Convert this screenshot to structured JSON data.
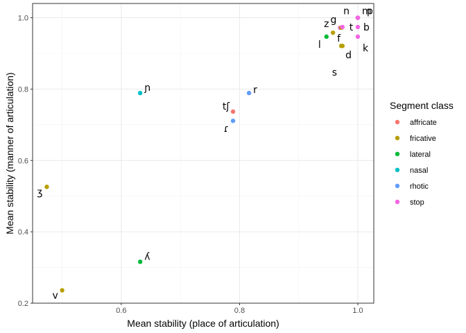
{
  "chart_data": {
    "type": "scatter",
    "xlabel": "Mean stability (place of articulation)",
    "ylabel": "Mean stability (manner of articulation)",
    "xlim": [
      0.45,
      1.027
    ],
    "ylim": [
      0.2,
      1.04
    ],
    "x_ticks": [
      0.6,
      0.8,
      1.0
    ],
    "x_tick_labels": [
      "0.6",
      "0.8",
      "1.0"
    ],
    "y_ticks": [
      0.2,
      0.4,
      0.6,
      0.8,
      1.0
    ],
    "y_tick_labels": [
      "0.2",
      "0.4",
      "0.6",
      "0.8",
      "1.0"
    ],
    "grid": true,
    "legend": {
      "title": "Segment class",
      "placement": "right",
      "entries": [
        {
          "name": "affricate",
          "color": "#F8766D"
        },
        {
          "name": "fricative",
          "color": "#B79F00"
        },
        {
          "name": "lateral",
          "color": "#00BA38"
        },
        {
          "name": "nasal",
          "color": "#00BFC4"
        },
        {
          "name": "rhotic",
          "color": "#619CFF"
        },
        {
          "name": "stop",
          "color": "#F564E3"
        }
      ]
    },
    "points": [
      {
        "label": "ʒ",
        "class": "fricative",
        "x": 0.474,
        "y": 0.526
      },
      {
        "label": "v",
        "class": "fricative",
        "x": 0.5,
        "y": 0.236
      },
      {
        "label": "ɲ",
        "class": "nasal",
        "x": 0.632,
        "y": 0.789
      },
      {
        "label": "ʎ",
        "class": "lateral",
        "x": 0.632,
        "y": 0.316
      },
      {
        "label": "tʃ",
        "class": "affricate",
        "x": 0.789,
        "y": 0.737
      },
      {
        "label": "ɾ",
        "class": "rhotic",
        "x": 0.789,
        "y": 0.711
      },
      {
        "label": "r",
        "class": "rhotic",
        "x": 0.816,
        "y": 0.789
      },
      {
        "label": "l",
        "class": "lateral",
        "x": 0.947,
        "y": 0.947
      },
      {
        "label": "z",
        "class": "fricative",
        "x": 0.958,
        "y": 0.958
      },
      {
        "label": "g",
        "class": "stop",
        "x": 0.97,
        "y": 0.972
      },
      {
        "label": "f",
        "class": "fricative",
        "x": 0.972,
        "y": 0.972
      },
      {
        "label": "s",
        "class": "fricative",
        "x": 0.974,
        "y": 0.921
      },
      {
        "label": "t",
        "class": "stop",
        "x": 0.974,
        "y": 0.974
      },
      {
        "label": "d",
        "class": "fricative",
        "x": 0.972,
        "y": 0.921
      },
      {
        "label": "n",
        "class": "stop",
        "x": 1.0,
        "y": 1.0
      },
      {
        "label": "m",
        "class": "stop",
        "x": 1.0,
        "y": 1.0
      },
      {
        "label": "p",
        "class": "stop",
        "x": 1.0,
        "y": 1.0
      },
      {
        "label": "b",
        "class": "stop",
        "x": 1.0,
        "y": 0.974
      },
      {
        "label": "k",
        "class": "stop",
        "x": 1.0,
        "y": 0.947
      }
    ]
  }
}
